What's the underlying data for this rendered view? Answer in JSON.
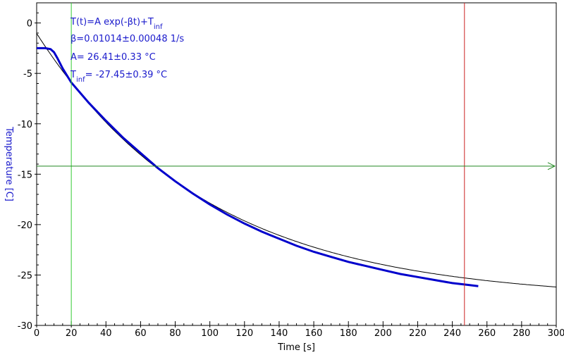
{
  "chart_data": {
    "type": "line",
    "title": "",
    "xlabel": "Time [s]",
    "ylabel": "Temperature [C]",
    "xlim": [
      0,
      300
    ],
    "ylim": [
      -30,
      2
    ],
    "xticks": [
      0,
      20,
      40,
      60,
      80,
      100,
      120,
      140,
      160,
      180,
      200,
      220,
      240,
      260,
      280,
      300
    ],
    "yticks": [
      0,
      -5,
      -10,
      -15,
      -20,
      -25,
      -30
    ],
    "grid": false,
    "annotations": {
      "formula_main": "T(t)=A exp(-βt)+T",
      "formula_sub": "inf",
      "beta": "β=0.01014±0.00048 1/s",
      "amplitude": "A= 26.41±0.33 °C",
      "tinf_prefix": "T",
      "tinf_sub": "inf",
      "tinf_value": "= -27.45±0.39 °C"
    },
    "fit": {
      "A": 26.41,
      "beta": 0.01014,
      "T_inf": -27.45,
      "x_range": [
        0,
        300
      ]
    },
    "markers": {
      "start_x": 20,
      "end_x": 247,
      "level_y": -14.2
    },
    "series": [
      {
        "x": [
          0,
          5,
          8,
          10,
          12,
          15,
          20,
          30,
          40,
          50,
          60,
          70,
          80,
          90,
          100,
          110,
          120,
          130,
          140,
          150,
          160,
          170,
          180,
          190,
          200,
          210,
          220,
          230,
          240,
          250,
          255
        ],
        "y": [
          -2.5,
          -2.5,
          -2.6,
          -2.9,
          -3.5,
          -4.5,
          -5.9,
          -7.9,
          -9.7,
          -11.4,
          -12.9,
          -14.4,
          -15.7,
          -16.9,
          -18.0,
          -19.0,
          -19.9,
          -20.7,
          -21.4,
          -22.1,
          -22.7,
          -23.2,
          -23.7,
          -24.1,
          -24.5,
          -24.9,
          -25.2,
          -25.5,
          -25.8,
          -26.0,
          -26.1
        ]
      }
    ],
    "colors": {
      "data": "#0000cc",
      "fit": "#000000",
      "start_marker": "#33cc33",
      "end_marker": "#cc2222",
      "level_marker": "#228822",
      "text": "#1a1acc"
    }
  }
}
